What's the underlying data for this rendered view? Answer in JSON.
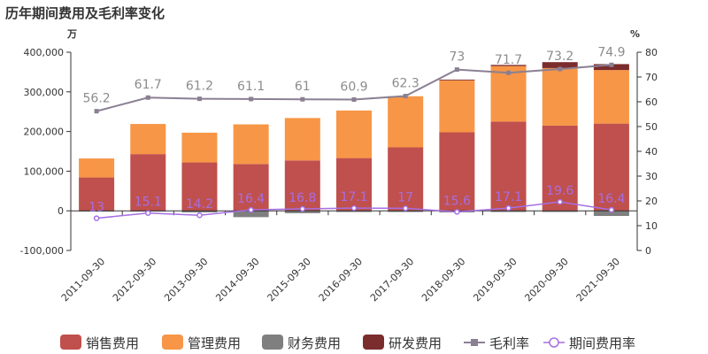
{
  "title": "历年期间费用及毛利率变化",
  "left_unit": "万",
  "right_unit": "%",
  "colors": {
    "sales": "#c0504d",
    "admin": "#f79646",
    "finance": "#7f7f7f",
    "rd": "#7b2c2c",
    "gross_margin": "#8a7f93",
    "period_rate": "#a56fe3"
  },
  "chart_data": {
    "type": "bar",
    "title": "历年期间费用及毛利率变化",
    "categories": [
      "2011-09-30",
      "2012-09-30",
      "2013-09-30",
      "2014-09-30",
      "2015-09-30",
      "2016-09-30",
      "2017-09-30",
      "2018-09-30",
      "2019-09-30",
      "2020-09-30",
      "2021-09-30"
    ],
    "y_left": {
      "unit": "万",
      "ylim": [
        -100000,
        400000
      ],
      "ticks": [
        -100000,
        0,
        100000,
        200000,
        300000,
        400000
      ],
      "tick_labels": [
        "-100,000",
        "0",
        "100,000",
        "200,000",
        "300,000",
        "400,000"
      ]
    },
    "y_right": {
      "unit": "%",
      "ylim": [
        0,
        80
      ],
      "ticks": [
        0,
        10,
        20,
        30,
        40,
        50,
        60,
        70,
        80
      ],
      "tick_labels": [
        "0",
        "10",
        "20",
        "30",
        "40",
        "50",
        "60",
        "70",
        "80"
      ]
    },
    "series": [
      {
        "name": "销售费用",
        "kind": "bar",
        "values": [
          84000,
          143000,
          122000,
          118000,
          127000,
          133000,
          160000,
          198000,
          225000,
          215000,
          220000
        ]
      },
      {
        "name": "管理费用",
        "kind": "bar",
        "values": [
          48000,
          76000,
          75000,
          100000,
          107000,
          120000,
          129000,
          131000,
          140000,
          145000,
          135000
        ]
      },
      {
        "name": "财务费用",
        "kind": "bar",
        "values": [
          -2000,
          -2000,
          -4000,
          -16000,
          -6000,
          -3000,
          -3000,
          -4000,
          -3000,
          -3000,
          -13000
        ]
      },
      {
        "name": "研发费用",
        "kind": "bar",
        "values": [
          0,
          0,
          0,
          0,
          0,
          0,
          0,
          2000,
          3000,
          15000,
          15000
        ]
      },
      {
        "name": "毛利率",
        "kind": "line",
        "axis": "right",
        "values": [
          56.2,
          61.7,
          61.2,
          61.1,
          61,
          60.9,
          62.3,
          73,
          71.7,
          73.2,
          74.9
        ],
        "labels": [
          "56.2",
          "61.7",
          "61.2",
          "61.1",
          "61",
          "60.9",
          "62.3",
          "73",
          "71.7",
          "73.2",
          "74.9"
        ]
      },
      {
        "name": "期间费用率",
        "kind": "line",
        "axis": "right",
        "values": [
          13,
          15.1,
          14.2,
          16.4,
          16.8,
          17.1,
          17,
          15.6,
          17.1,
          19.6,
          16.4
        ],
        "labels": [
          "13",
          "15.1",
          "14.2",
          "16.4",
          "16.8",
          "17.1",
          "17",
          "15.6",
          "17.1",
          "19.6",
          "16.4"
        ]
      }
    ],
    "legend": [
      "销售费用",
      "管理费用",
      "财务费用",
      "研发费用",
      "毛利率",
      "期间费用率"
    ],
    "legend_position": "bottom"
  }
}
